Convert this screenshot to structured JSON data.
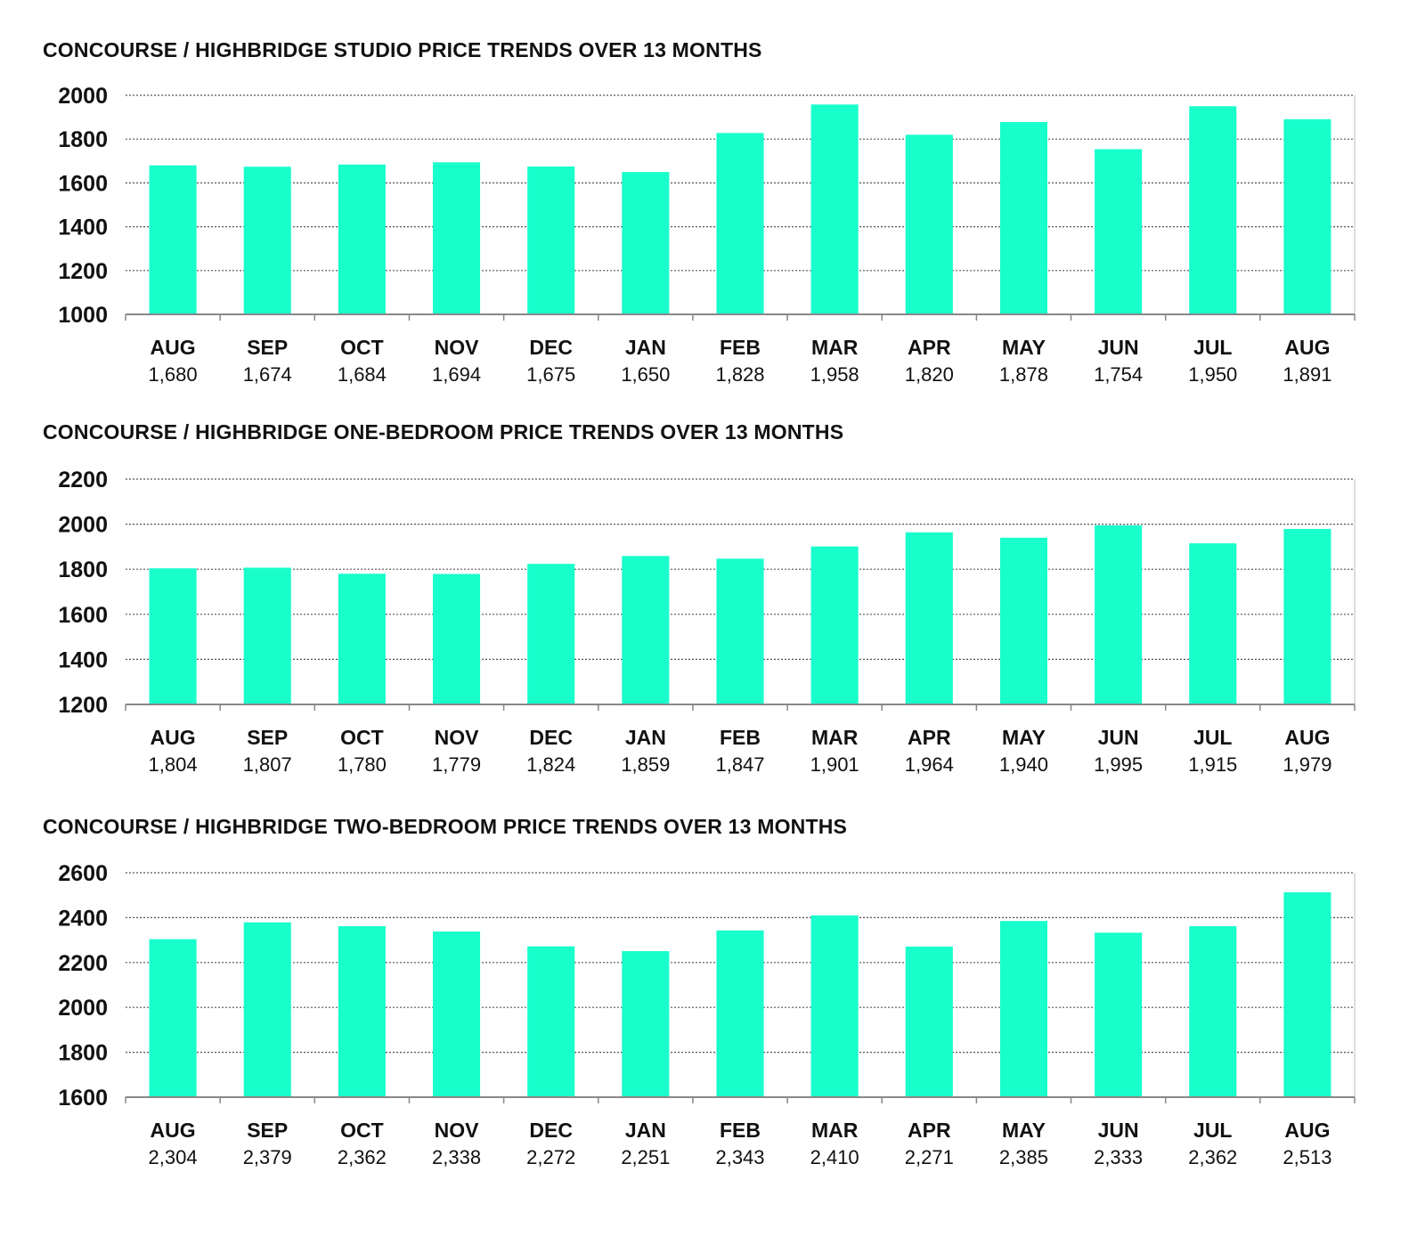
{
  "chart_data": [
    {
      "type": "bar",
      "title": "CONCOURSE / HIGHBRIDGE STUDIO PRICE TRENDS OVER 13 MONTHS",
      "categories": [
        "AUG",
        "SEP",
        "OCT",
        "NOV",
        "DEC",
        "JAN",
        "FEB",
        "MAR",
        "APR",
        "MAY",
        "JUN",
        "JUL",
        "AUG"
      ],
      "value_labels": [
        "1,680",
        "1,674",
        "1,684",
        "1,694",
        "1,675",
        "1,650",
        "1,828",
        "1,958",
        "1,820",
        "1,878",
        "1,754",
        "1,950",
        "1,891"
      ],
      "values": [
        1680,
        1674,
        1684,
        1694,
        1675,
        1650,
        1828,
        1958,
        1820,
        1878,
        1754,
        1950,
        1891
      ],
      "yticks": [
        1000,
        1200,
        1400,
        1600,
        1800,
        2000
      ],
      "ylim": [
        1000,
        2000
      ],
      "grid": true,
      "bar_color": "#19ffcc"
    },
    {
      "type": "bar",
      "title": "CONCOURSE / HIGHBRIDGE ONE-BEDROOM PRICE TRENDS OVER 13 MONTHS",
      "categories": [
        "AUG",
        "SEP",
        "OCT",
        "NOV",
        "DEC",
        "JAN",
        "FEB",
        "MAR",
        "APR",
        "MAY",
        "JUN",
        "JUL",
        "AUG"
      ],
      "value_labels": [
        "1,804",
        "1,807",
        "1,780",
        "1,779",
        "1,824",
        "1,859",
        "1,847",
        "1,901",
        "1,964",
        "1,940",
        "1,995",
        "1,915",
        "1,979"
      ],
      "values": [
        1804,
        1807,
        1780,
        1779,
        1824,
        1859,
        1847,
        1901,
        1964,
        1940,
        1995,
        1915,
        1979
      ],
      "yticks": [
        1200,
        1400,
        1600,
        1800,
        2000,
        2200
      ],
      "ylim": [
        1200,
        2200
      ],
      "grid": true,
      "bar_color": "#19ffcc"
    },
    {
      "type": "bar",
      "title": "CONCOURSE / HIGHBRIDGE TWO-BEDROOM PRICE TRENDS OVER 13 MONTHS",
      "categories": [
        "AUG",
        "SEP",
        "OCT",
        "NOV",
        "DEC",
        "JAN",
        "FEB",
        "MAR",
        "APR",
        "MAY",
        "JUN",
        "JUL",
        "AUG"
      ],
      "value_labels": [
        "2,304",
        "2,379",
        "2,362",
        "2,338",
        "2,272",
        "2,251",
        "2,343",
        "2,410",
        "2,271",
        "2,385",
        "2,333",
        "2,362",
        "2,513"
      ],
      "values": [
        2304,
        2379,
        2362,
        2338,
        2272,
        2251,
        2343,
        2410,
        2271,
        2385,
        2333,
        2362,
        2513
      ],
      "yticks": [
        1600,
        1800,
        2000,
        2200,
        2400,
        2600
      ],
      "ylim": [
        1600,
        2600
      ],
      "grid": true,
      "bar_color": "#19ffcc"
    }
  ]
}
